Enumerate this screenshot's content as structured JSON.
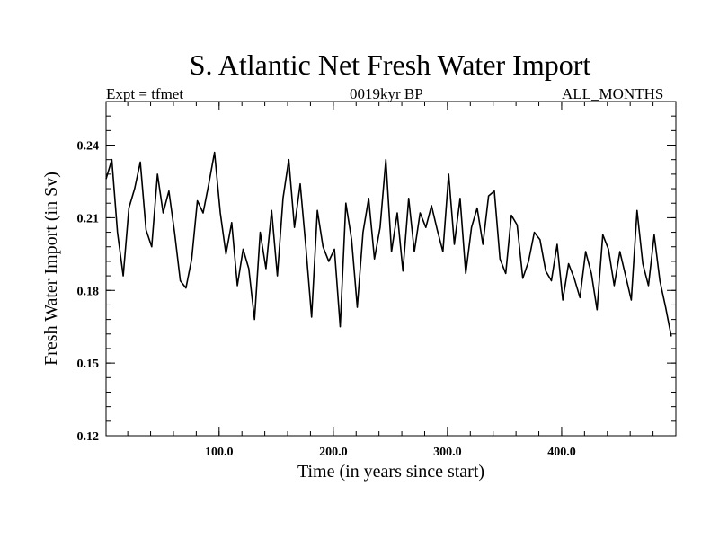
{
  "chart_data": {
    "type": "line",
    "title": "S. Atlantic Net Fresh Water Import",
    "subtitle_left": "Expt = tfmet",
    "subtitle_center": "0019kyr BP",
    "subtitle_right": "ALL_MONTHS",
    "xlabel": "Time (in years since start)",
    "ylabel": "Fresh Water Import (in Sv)",
    "xlim": [
      1,
      500
    ],
    "ylim": [
      0.12,
      0.258
    ],
    "xticks": [
      100,
      200,
      300,
      400
    ],
    "xtick_labels": [
      "100.0",
      "200.0",
      "300.0",
      "400.0"
    ],
    "yticks": [
      0.12,
      0.15,
      0.18,
      0.21,
      0.24
    ],
    "ytick_labels": [
      "0.12",
      "0.15",
      "0.18",
      "0.21",
      "0.24"
    ],
    "x_minor_step": 20,
    "y_minor_step": 0.006,
    "grid": false,
    "line_color": "#000000",
    "series": [
      {
        "x_start": 1,
        "x_step": 5,
        "values": [
          0.226,
          0.234,
          0.204,
          0.186,
          0.214,
          0.222,
          0.233,
          0.205,
          0.198,
          0.228,
          0.212,
          0.221,
          0.204,
          0.184,
          0.181,
          0.193,
          0.217,
          0.212,
          0.224,
          0.237,
          0.212,
          0.195,
          0.208,
          0.182,
          0.197,
          0.189,
          0.168,
          0.204,
          0.189,
          0.213,
          0.186,
          0.218,
          0.234,
          0.206,
          0.224,
          0.198,
          0.169,
          0.213,
          0.198,
          0.192,
          0.197,
          0.165,
          0.216,
          0.201,
          0.173,
          0.204,
          0.218,
          0.193,
          0.206,
          0.234,
          0.196,
          0.212,
          0.188,
          0.218,
          0.196,
          0.212,
          0.206,
          0.215,
          0.205,
          0.196,
          0.228,
          0.199,
          0.218,
          0.187,
          0.206,
          0.214,
          0.199,
          0.219,
          0.221,
          0.193,
          0.187,
          0.211,
          0.207,
          0.185,
          0.192,
          0.204,
          0.201,
          0.188,
          0.184,
          0.199,
          0.176,
          0.191,
          0.185,
          0.177,
          0.196,
          0.187,
          0.172,
          0.203,
          0.197,
          0.182,
          0.196,
          0.186,
          0.176,
          0.213,
          0.191,
          0.182,
          0.203,
          0.184,
          0.173,
          0.161
        ]
      }
    ]
  }
}
